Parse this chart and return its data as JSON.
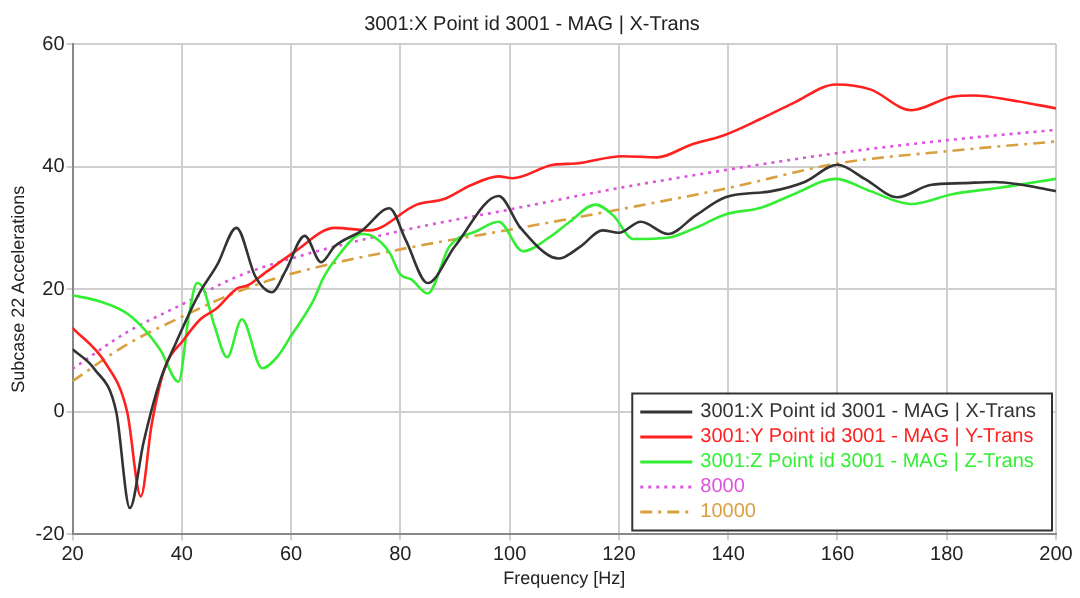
{
  "chart_data": {
    "type": "line",
    "title": "3001:X Point id 3001 - MAG | X-Trans",
    "xlabel": "Frequency [Hz]",
    "ylabel": "Subcase 22 Accelerations",
    "xlim": [
      20,
      200
    ],
    "xticks": [
      20,
      40,
      60,
      80,
      100,
      120,
      140,
      160,
      180,
      200
    ],
    "ylim": [
      -20,
      60
    ],
    "yticks": [
      -20,
      0,
      20,
      40,
      60
    ],
    "grid": true,
    "legend": "bottom right",
    "marker": "none",
    "series": [
      {
        "name": "3001:X Point id 3001 - MAG | X-Trans",
        "color": "#333333",
        "line_style": "solid",
        "x": [
          20,
          24,
          28,
          30.5,
          33,
          36,
          39,
          43,
          46.5,
          50,
          53.5,
          56.5,
          59,
          62.5,
          65.5,
          68,
          73,
          78,
          81,
          85,
          90,
          98,
          102,
          109,
          113,
          117,
          120,
          124,
          129,
          134,
          139.5,
          148,
          154,
          160,
          165,
          171,
          177,
          183,
          188.7,
          194,
          200
        ],
        "values": [
          10.2,
          7,
          0,
          -15.7,
          -5,
          5,
          11.4,
          19,
          24,
          30,
          22,
          19.5,
          23,
          28.7,
          24.4,
          27,
          29.6,
          33.2,
          28,
          21,
          27,
          35.2,
          30,
          25,
          27,
          29.6,
          29.2,
          31,
          29,
          32,
          35,
          36,
          37.5,
          40.3,
          38,
          35,
          37,
          37.3,
          37.5,
          37,
          36
        ]
      },
      {
        "name": "3001:Y Point id 3001 - MAG | Y-Trans",
        "color": "#ff2020",
        "line_style": "solid",
        "x": [
          20,
          26,
          30,
          32.5,
          34.5,
          36.8,
          40.4,
          43.4,
          46.3,
          50.1,
          52,
          55,
          60.5,
          68,
          74.4,
          83,
          88,
          93,
          98,
          100.5,
          108,
          112,
          120.6,
          127,
          133,
          139.5,
          146,
          152,
          159.7,
          166,
          173.5,
          181,
          185,
          192,
          200
        ],
        "values": [
          13.7,
          8,
          0,
          -13.8,
          -2,
          6.9,
          11.8,
          15.1,
          16.8,
          20.1,
          20.6,
          22.5,
          26,
          30,
          29.6,
          33.8,
          34.7,
          37,
          38.4,
          38.1,
          40.3,
          40.5,
          41.7,
          41.5,
          43.5,
          45.2,
          47.8,
          50.4,
          53.4,
          52.6,
          49.2,
          51.4,
          51.6,
          50.8,
          49.5
        ]
      },
      {
        "name": "3001:Z Point id 3001 - MAG | Z-Trans",
        "color": "#33ee33",
        "line_style": "solid",
        "x": [
          20,
          25,
          30.5,
          36,
          39.4,
          41.3,
          42.8,
          44,
          46,
          48.3,
          51,
          54.7,
          57.6,
          60,
          64,
          66,
          68.5,
          73,
          75,
          78,
          80,
          82,
          85,
          89,
          94,
          98,
          102.4,
          107.5,
          111,
          115.7,
          119,
          122.6,
          129,
          134,
          139.5,
          146,
          152,
          159.7,
          166,
          173.5,
          181,
          190,
          200
        ],
        "values": [
          19,
          18,
          15.7,
          10.2,
          4.9,
          15.7,
          21,
          20,
          14,
          8.9,
          15.1,
          7.1,
          9.1,
          12.4,
          18,
          22,
          25.3,
          29,
          28.6,
          26,
          22.4,
          21.6,
          19.3,
          27,
          29.5,
          31,
          26.2,
          28.6,
          31,
          33.8,
          32,
          28.2,
          28.4,
          30,
          32.2,
          33.3,
          35.5,
          38,
          36,
          33.9,
          35.5,
          36.6,
          38
        ]
      },
      {
        "name": "8000",
        "color": "#dd55dd",
        "line_style": "dotted",
        "x": [
          20,
          30,
          40,
          50,
          60,
          80,
          100,
          120,
          140,
          160,
          180,
          200
        ],
        "values": [
          7,
          13,
          17.5,
          22,
          25,
          29.5,
          33,
          36.5,
          39.5,
          42.2,
          44.3,
          46
        ]
      },
      {
        "name": "10000",
        "color": "#d9a040",
        "line_style": "dashed",
        "x": [
          20,
          30,
          40,
          50,
          60,
          80,
          100,
          120,
          140,
          160,
          180,
          200
        ],
        "values": [
          5,
          11,
          15.5,
          19.5,
          22.5,
          26.5,
          29.7,
          33,
          36.5,
          40.5,
          42.5,
          44.1
        ]
      }
    ]
  }
}
